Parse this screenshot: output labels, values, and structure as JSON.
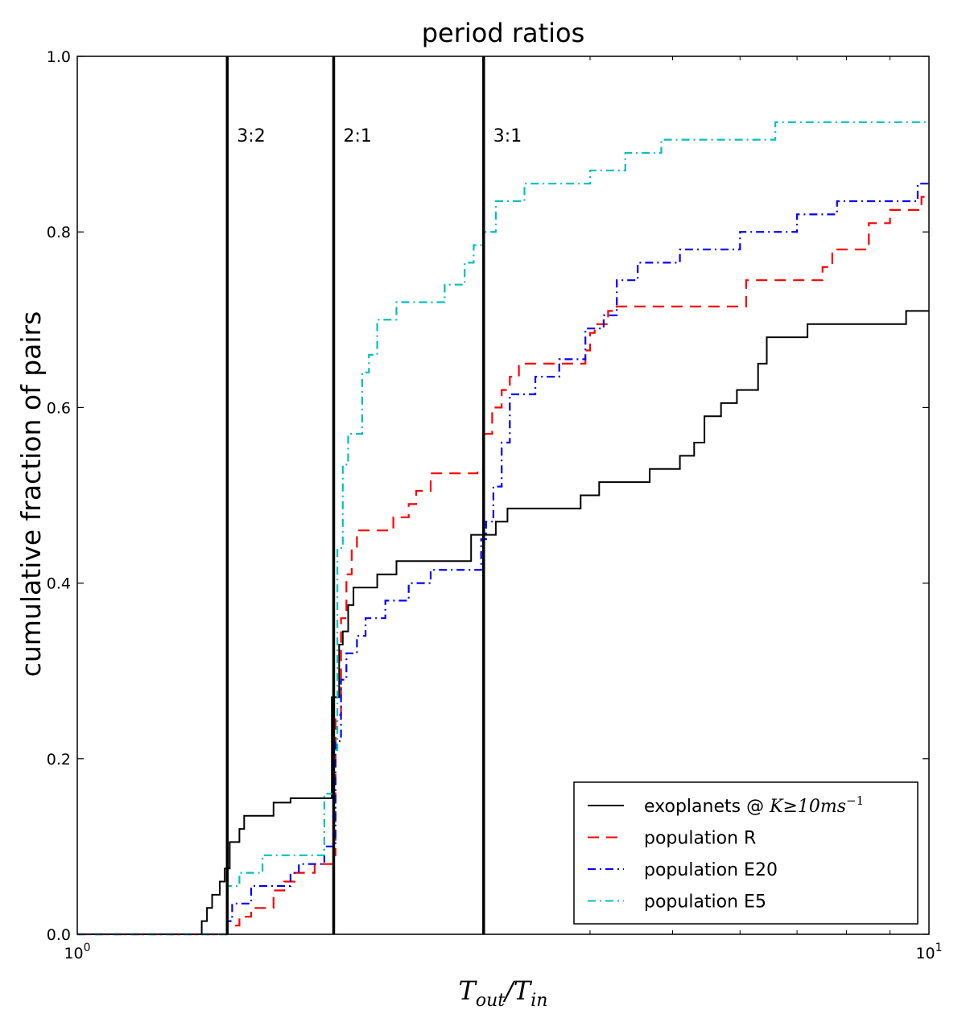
{
  "chart_data": {
    "type": "line",
    "title": "period ratios",
    "xlabel": "T_out/T_in",
    "xlabel_main": "T",
    "xlabel_sub1": "out",
    "xlabel_slash": "/T",
    "xlabel_sub2": "in",
    "ylabel": "cumulative fraction of pairs",
    "xscale": "log",
    "xlim": [
      1,
      10
    ],
    "ylim": [
      0,
      1.0
    ],
    "x_ticks": [
      {
        "base": "10",
        "exp": "0",
        "value": 1
      },
      {
        "base": "10",
        "exp": "1",
        "value": 10
      }
    ],
    "y_ticks": [
      "0.0",
      "0.2",
      "0.4",
      "0.6",
      "0.8",
      "1.0"
    ],
    "y_tick_values": [
      0,
      0.2,
      0.4,
      0.6,
      0.8,
      1.0
    ],
    "vlines": [
      {
        "x": 1.5,
        "label": "3:2"
      },
      {
        "x": 2.0,
        "label": "2:1"
      },
      {
        "x": 3.0,
        "label": "3:1"
      }
    ],
    "legend_location": "lower-right",
    "series": [
      {
        "name": "exoplanets @ K≥10ms⁻¹",
        "legend_main": "exoplanets @ ",
        "legend_math": "K≥10ms",
        "legend_sup": "−1",
        "color": "#000000",
        "dash": "",
        "points": [
          [
            1.0,
            0.0
          ],
          [
            1.4,
            0.0
          ],
          [
            1.4,
            0.015
          ],
          [
            1.42,
            0.015
          ],
          [
            1.42,
            0.03
          ],
          [
            1.44,
            0.03
          ],
          [
            1.44,
            0.045
          ],
          [
            1.47,
            0.045
          ],
          [
            1.47,
            0.06
          ],
          [
            1.49,
            0.06
          ],
          [
            1.49,
            0.075
          ],
          [
            1.51,
            0.075
          ],
          [
            1.51,
            0.105
          ],
          [
            1.55,
            0.105
          ],
          [
            1.55,
            0.12
          ],
          [
            1.57,
            0.12
          ],
          [
            1.57,
            0.135
          ],
          [
            1.7,
            0.135
          ],
          [
            1.7,
            0.15
          ],
          [
            1.78,
            0.15
          ],
          [
            1.78,
            0.155
          ],
          [
            1.99,
            0.155
          ],
          [
            1.99,
            0.27
          ],
          [
            2.03,
            0.27
          ],
          [
            2.03,
            0.33
          ],
          [
            2.05,
            0.33
          ],
          [
            2.05,
            0.345
          ],
          [
            2.08,
            0.345
          ],
          [
            2.08,
            0.375
          ],
          [
            2.11,
            0.375
          ],
          [
            2.11,
            0.395
          ],
          [
            2.25,
            0.395
          ],
          [
            2.25,
            0.41
          ],
          [
            2.37,
            0.41
          ],
          [
            2.37,
            0.425
          ],
          [
            2.9,
            0.425
          ],
          [
            2.9,
            0.455
          ],
          [
            3.1,
            0.455
          ],
          [
            3.1,
            0.47
          ],
          [
            3.2,
            0.47
          ],
          [
            3.2,
            0.485
          ],
          [
            3.9,
            0.485
          ],
          [
            3.9,
            0.5
          ],
          [
            4.1,
            0.5
          ],
          [
            4.1,
            0.515
          ],
          [
            4.7,
            0.515
          ],
          [
            4.7,
            0.53
          ],
          [
            5.1,
            0.53
          ],
          [
            5.1,
            0.545
          ],
          [
            5.3,
            0.545
          ],
          [
            5.3,
            0.56
          ],
          [
            5.45,
            0.56
          ],
          [
            5.45,
            0.59
          ],
          [
            5.7,
            0.59
          ],
          [
            5.7,
            0.605
          ],
          [
            5.95,
            0.605
          ],
          [
            5.95,
            0.62
          ],
          [
            6.3,
            0.62
          ],
          [
            6.3,
            0.65
          ],
          [
            6.45,
            0.65
          ],
          [
            6.45,
            0.68
          ],
          [
            7.2,
            0.68
          ],
          [
            7.2,
            0.695
          ],
          [
            9.4,
            0.695
          ],
          [
            9.4,
            0.71
          ],
          [
            10.0,
            0.71
          ]
        ]
      },
      {
        "name": "population R",
        "color": "#ff0000",
        "dash": "14,9",
        "points": [
          [
            1.0,
            0.0
          ],
          [
            1.5,
            0.0
          ],
          [
            1.5,
            0.01
          ],
          [
            1.55,
            0.01
          ],
          [
            1.55,
            0.02
          ],
          [
            1.6,
            0.02
          ],
          [
            1.6,
            0.03
          ],
          [
            1.7,
            0.03
          ],
          [
            1.7,
            0.05
          ],
          [
            1.75,
            0.05
          ],
          [
            1.75,
            0.06
          ],
          [
            1.8,
            0.06
          ],
          [
            1.8,
            0.07
          ],
          [
            1.9,
            0.07
          ],
          [
            1.9,
            0.08
          ],
          [
            2.0,
            0.08
          ],
          [
            2.0,
            0.09
          ],
          [
            2.01,
            0.09
          ],
          [
            2.01,
            0.25
          ],
          [
            2.04,
            0.25
          ],
          [
            2.04,
            0.36
          ],
          [
            2.07,
            0.36
          ],
          [
            2.07,
            0.41
          ],
          [
            2.1,
            0.41
          ],
          [
            2.1,
            0.44
          ],
          [
            2.13,
            0.44
          ],
          [
            2.13,
            0.46
          ],
          [
            2.35,
            0.46
          ],
          [
            2.35,
            0.475
          ],
          [
            2.45,
            0.475
          ],
          [
            2.45,
            0.49
          ],
          [
            2.5,
            0.49
          ],
          [
            2.5,
            0.505
          ],
          [
            2.6,
            0.505
          ],
          [
            2.6,
            0.525
          ],
          [
            2.95,
            0.525
          ],
          [
            2.95,
            0.53
          ],
          [
            3.0,
            0.53
          ],
          [
            3.0,
            0.57
          ],
          [
            3.07,
            0.57
          ],
          [
            3.07,
            0.6
          ],
          [
            3.15,
            0.6
          ],
          [
            3.15,
            0.62
          ],
          [
            3.22,
            0.62
          ],
          [
            3.22,
            0.635
          ],
          [
            3.3,
            0.635
          ],
          [
            3.3,
            0.65
          ],
          [
            3.95,
            0.65
          ],
          [
            3.95,
            0.665
          ],
          [
            4.0,
            0.665
          ],
          [
            4.0,
            0.685
          ],
          [
            4.05,
            0.685
          ],
          [
            4.05,
            0.695
          ],
          [
            4.2,
            0.695
          ],
          [
            4.2,
            0.71
          ],
          [
            4.3,
            0.71
          ],
          [
            4.3,
            0.715
          ],
          [
            6.1,
            0.715
          ],
          [
            6.1,
            0.745
          ],
          [
            7.5,
            0.745
          ],
          [
            7.5,
            0.76
          ],
          [
            7.7,
            0.76
          ],
          [
            7.7,
            0.78
          ],
          [
            8.5,
            0.78
          ],
          [
            8.5,
            0.81
          ],
          [
            9.0,
            0.81
          ],
          [
            9.0,
            0.825
          ],
          [
            9.8,
            0.825
          ],
          [
            9.8,
            0.84
          ],
          [
            10.0,
            0.84
          ]
        ]
      },
      {
        "name": "population E20",
        "color": "#0000ff",
        "dash": "10,5,2,5",
        "points": [
          [
            1.0,
            0.0
          ],
          [
            1.5,
            0.0
          ],
          [
            1.5,
            0.015
          ],
          [
            1.52,
            0.015
          ],
          [
            1.52,
            0.035
          ],
          [
            1.6,
            0.035
          ],
          [
            1.6,
            0.055
          ],
          [
            1.78,
            0.055
          ],
          [
            1.78,
            0.07
          ],
          [
            1.82,
            0.07
          ],
          [
            1.82,
            0.08
          ],
          [
            1.95,
            0.08
          ],
          [
            1.95,
            0.1
          ],
          [
            2.01,
            0.1
          ],
          [
            2.01,
            0.22
          ],
          [
            2.04,
            0.22
          ],
          [
            2.04,
            0.29
          ],
          [
            2.07,
            0.29
          ],
          [
            2.07,
            0.32
          ],
          [
            2.13,
            0.32
          ],
          [
            2.13,
            0.34
          ],
          [
            2.18,
            0.34
          ],
          [
            2.18,
            0.36
          ],
          [
            2.3,
            0.36
          ],
          [
            2.3,
            0.38
          ],
          [
            2.45,
            0.38
          ],
          [
            2.45,
            0.4
          ],
          [
            2.6,
            0.4
          ],
          [
            2.6,
            0.415
          ],
          [
            2.98,
            0.415
          ],
          [
            2.98,
            0.45
          ],
          [
            3.02,
            0.45
          ],
          [
            3.02,
            0.47
          ],
          [
            3.08,
            0.47
          ],
          [
            3.08,
            0.51
          ],
          [
            3.15,
            0.51
          ],
          [
            3.15,
            0.56
          ],
          [
            3.22,
            0.56
          ],
          [
            3.22,
            0.615
          ],
          [
            3.45,
            0.615
          ],
          [
            3.45,
            0.635
          ],
          [
            3.68,
            0.635
          ],
          [
            3.68,
            0.655
          ],
          [
            3.95,
            0.655
          ],
          [
            3.95,
            0.69
          ],
          [
            4.15,
            0.69
          ],
          [
            4.15,
            0.705
          ],
          [
            4.3,
            0.705
          ],
          [
            4.3,
            0.745
          ],
          [
            4.55,
            0.745
          ],
          [
            4.55,
            0.765
          ],
          [
            5.1,
            0.765
          ],
          [
            5.1,
            0.78
          ],
          [
            6.0,
            0.78
          ],
          [
            6.0,
            0.8
          ],
          [
            7.0,
            0.8
          ],
          [
            7.0,
            0.82
          ],
          [
            7.8,
            0.82
          ],
          [
            7.8,
            0.835
          ],
          [
            9.7,
            0.835
          ],
          [
            9.7,
            0.855
          ],
          [
            10.0,
            0.855
          ]
        ]
      },
      {
        "name": "population E5",
        "color": "#00bfbf",
        "dash": "10,5,2,5",
        "points": [
          [
            1.0,
            0.0
          ],
          [
            1.5,
            0.0
          ],
          [
            1.5,
            0.055
          ],
          [
            1.55,
            0.055
          ],
          [
            1.55,
            0.07
          ],
          [
            1.65,
            0.07
          ],
          [
            1.65,
            0.09
          ],
          [
            1.95,
            0.09
          ],
          [
            1.95,
            0.16
          ],
          [
            2.0,
            0.16
          ],
          [
            2.0,
            0.21
          ],
          [
            2.02,
            0.21
          ],
          [
            2.02,
            0.44
          ],
          [
            2.05,
            0.44
          ],
          [
            2.05,
            0.535
          ],
          [
            2.08,
            0.535
          ],
          [
            2.08,
            0.57
          ],
          [
            2.16,
            0.57
          ],
          [
            2.16,
            0.64
          ],
          [
            2.2,
            0.64
          ],
          [
            2.2,
            0.66
          ],
          [
            2.25,
            0.66
          ],
          [
            2.25,
            0.7
          ],
          [
            2.37,
            0.7
          ],
          [
            2.37,
            0.72
          ],
          [
            2.7,
            0.72
          ],
          [
            2.7,
            0.74
          ],
          [
            2.85,
            0.74
          ],
          [
            2.85,
            0.765
          ],
          [
            2.92,
            0.765
          ],
          [
            2.92,
            0.785
          ],
          [
            3.0,
            0.785
          ],
          [
            3.0,
            0.8
          ],
          [
            3.1,
            0.8
          ],
          [
            3.1,
            0.835
          ],
          [
            3.35,
            0.835
          ],
          [
            3.35,
            0.855
          ],
          [
            4.0,
            0.855
          ],
          [
            4.0,
            0.87
          ],
          [
            4.4,
            0.87
          ],
          [
            4.4,
            0.89
          ],
          [
            4.85,
            0.89
          ],
          [
            4.85,
            0.905
          ],
          [
            6.6,
            0.905
          ],
          [
            6.6,
            0.925
          ],
          [
            10.0,
            0.925
          ]
        ]
      }
    ]
  }
}
